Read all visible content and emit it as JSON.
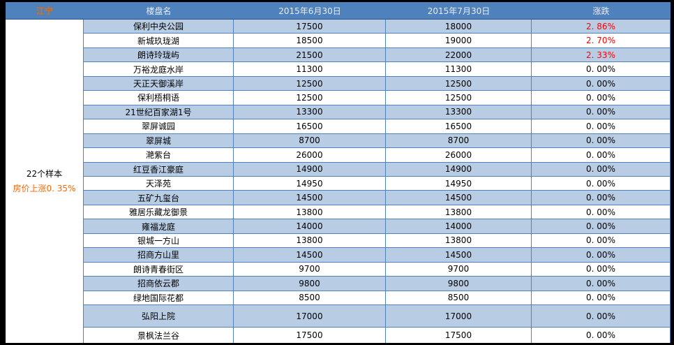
{
  "colors": {
    "frame_black": "#000000",
    "header_bg": "#4F81BD",
    "header_text": "#E9EEF6",
    "region_label_text": "#E36C09",
    "band_row_bg": "#B8CCE4",
    "plain_row_bg": "#FFFFFF",
    "grid_border": "#4F81BD",
    "change_up_red": "#FF0000",
    "summary_trend_orange": "#FF6600"
  },
  "chart_data": {
    "type": "table",
    "region": "江宁",
    "columns": [
      "楼盘名",
      "2015年6月30日",
      "2015年7月30日",
      "涨跌"
    ],
    "summary": {
      "samples": "22个样本",
      "trend": "房价上涨0. 35%"
    },
    "rows": [
      {
        "name": "保利中央公园",
        "jun": 17500,
        "jul": 18000,
        "change": "2. 86%",
        "up": true
      },
      {
        "name": "新城玖珑湖",
        "jun": 18500,
        "jul": 19000,
        "change": "2. 70%",
        "up": true
      },
      {
        "name": "朗诗玲珑屿",
        "jun": 21500,
        "jul": 22000,
        "change": "2. 33%",
        "up": true
      },
      {
        "name": "万裕龙庭水岸",
        "jun": 11300,
        "jul": 11300,
        "change": "0. 00%",
        "up": false
      },
      {
        "name": "天正天御溪岸",
        "jun": 12500,
        "jul": 12500,
        "change": "0. 00%",
        "up": false
      },
      {
        "name": "保利梧桐语",
        "jun": 12500,
        "jul": 12500,
        "change": "0. 00%",
        "up": false
      },
      {
        "name": "21世纪百家湖1号",
        "jun": 13300,
        "jul": 13300,
        "change": "0. 00%",
        "up": false
      },
      {
        "name": "翠屏诚园",
        "jun": 16500,
        "jul": 16500,
        "change": "0. 00%",
        "up": false
      },
      {
        "name": "翠屏城",
        "jun": 8700,
        "jul": 8700,
        "change": "0. 00%",
        "up": false
      },
      {
        "name": "滟紫台",
        "jun": 26000,
        "jul": 26000,
        "change": "0. 00%",
        "up": false
      },
      {
        "name": "红豆香江豪庭",
        "jun": 14900,
        "jul": 14900,
        "change": "0. 00%",
        "up": false
      },
      {
        "name": "天泽苑",
        "jun": 14950,
        "jul": 14950,
        "change": "0. 00%",
        "up": false
      },
      {
        "name": "五矿九玺台",
        "jun": 14500,
        "jul": 14500,
        "change": "0. 00%",
        "up": false
      },
      {
        "name": "雅居乐藏龙御景",
        "jun": 13800,
        "jul": 13800,
        "change": "0. 00%",
        "up": false
      },
      {
        "name": "雍福龙庭",
        "jun": 14000,
        "jul": 14000,
        "change": "0. 00%",
        "up": false
      },
      {
        "name": "银城一方山",
        "jun": 13800,
        "jul": 13800,
        "change": "0. 00%",
        "up": false
      },
      {
        "name": "招商方山里",
        "jun": 14500,
        "jul": 14500,
        "change": "0. 00%",
        "up": false
      },
      {
        "name": "朗诗青春街区",
        "jun": 9700,
        "jul": 9700,
        "change": "0. 00%",
        "up": false
      },
      {
        "name": "招商依云郡",
        "jun": 9800,
        "jul": 9800,
        "change": "0. 00%",
        "up": false
      },
      {
        "name": "绿地国际花都",
        "jun": 8500,
        "jul": 8500,
        "change": "0. 00%",
        "up": false
      },
      {
        "name": "弘阳上院",
        "jun": 17000,
        "jul": 17000,
        "change": "0. 00%",
        "up": false
      },
      {
        "name": "景枫法兰谷",
        "jun": 17500,
        "jul": 17500,
        "change": "0. 00%",
        "up": false
      }
    ]
  }
}
